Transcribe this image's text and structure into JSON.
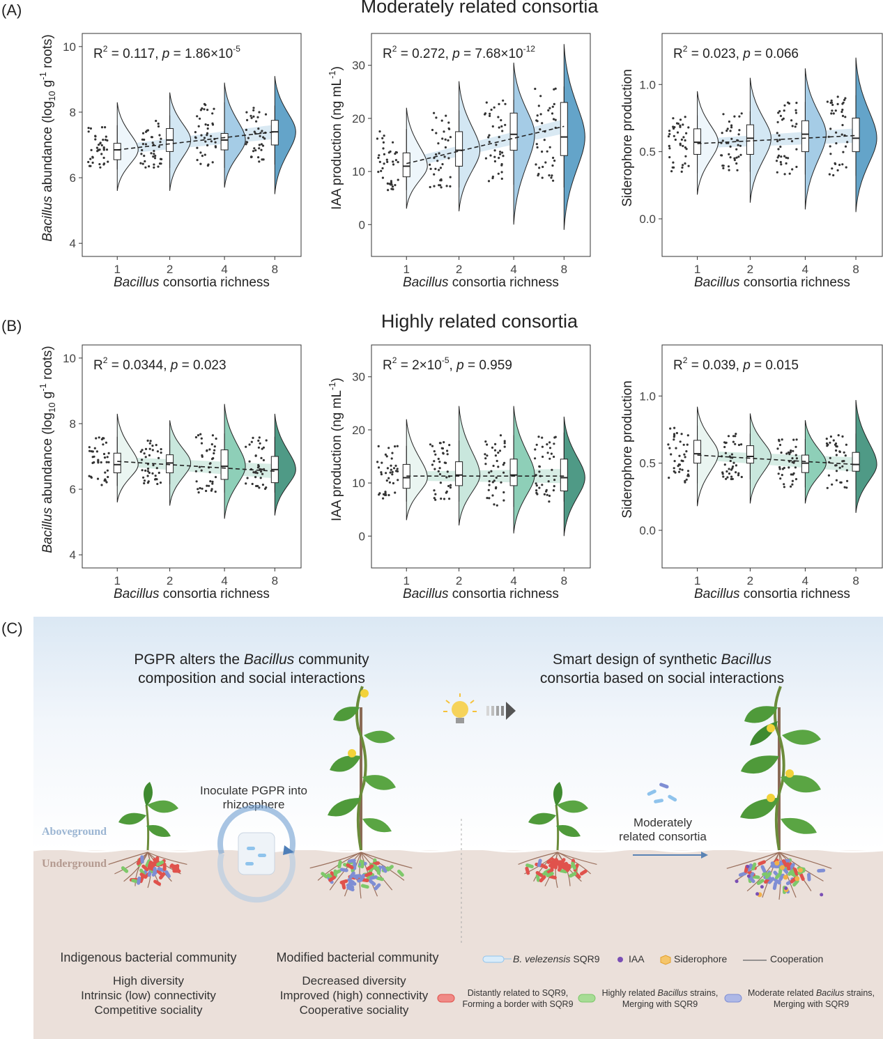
{
  "panels": {
    "A": {
      "letter": "(A)",
      "title": "Moderately related consortia"
    },
    "B": {
      "letter": "(B)",
      "title": "Highly related consortia"
    },
    "C": {
      "letter": "(C)"
    }
  },
  "axis_common": {
    "x_label_italic": "Bacillus",
    "x_label_rest": " consortia richness",
    "x_ticks": [
      "1",
      "2",
      "4",
      "8"
    ]
  },
  "chart_data": [
    {
      "id": "A-abundance",
      "type": "raincloud (half-violin + boxplot + jitter) with linear fit",
      "group": "Moderately related consortia",
      "ylabel_parts": [
        "Bacillus",
        " abundance (log",
        "10",
        " g",
        "-1",
        " roots)"
      ],
      "yticks": [
        4,
        6,
        8,
        10
      ],
      "ylim": [
        3.6,
        10.4
      ],
      "categories": [
        "1",
        "2",
        "4",
        "8"
      ],
      "stat_parts": [
        "R",
        "2",
        " = 0.117, ",
        "p",
        " = 1.86×10",
        "-5"
      ],
      "box": [
        {
          "q1": 6.55,
          "median": 6.85,
          "q3": 7.05,
          "wlo": 6.25,
          "whi": 7.6
        },
        {
          "q1": 6.8,
          "median": 7.15,
          "q3": 7.5,
          "wlo": 6.3,
          "whi": 7.9
        },
        {
          "q1": 6.85,
          "median": 7.15,
          "q3": 7.35,
          "wlo": 6.3,
          "whi": 8.3
        },
        {
          "q1": 7.0,
          "median": 7.4,
          "q3": 7.75,
          "wlo": 6.4,
          "whi": 8.2
        }
      ],
      "violin": [
        [
          5.6,
          8.3
        ],
        [
          5.6,
          8.6
        ],
        [
          5.7,
          8.9
        ],
        [
          5.5,
          9.1
        ]
      ],
      "fit": [
        6.85,
        7.4
      ],
      "fill_colors": [
        "#eef6fb",
        "#d3e7f3",
        "#a5cce6",
        "#64a4c9"
      ]
    },
    {
      "id": "A-iaa",
      "type": "raincloud (half-violin + boxplot + jitter) with linear fit",
      "group": "Moderately related consortia",
      "ylabel_parts": [
        "IAA production (ng mL",
        "-1",
        ")"
      ],
      "yticks": [
        0,
        10,
        20,
        30
      ],
      "ylim": [
        -6,
        36
      ],
      "categories": [
        "1",
        "2",
        "4",
        "8"
      ],
      "stat_parts": [
        "R",
        "2",
        " = 0.272, ",
        "p",
        " = 7.68×10",
        "-12"
      ],
      "box": [
        {
          "q1": 9.0,
          "median": 11.0,
          "q3": 13.5,
          "wlo": 6.5,
          "whi": 18.0
        },
        {
          "q1": 11.0,
          "median": 14.0,
          "q3": 17.5,
          "wlo": 7.0,
          "whi": 21.5
        },
        {
          "q1": 14.0,
          "median": 17.0,
          "q3": 21.0,
          "wlo": 7.5,
          "whi": 23.5
        },
        {
          "q1": 13.0,
          "median": 16.5,
          "q3": 23.0,
          "wlo": 7.0,
          "whi": 26.0
        }
      ],
      "violin": [
        [
          3.0,
          22.0
        ],
        [
          2.5,
          27.0
        ],
        [
          0.0,
          30.5
        ],
        [
          -1.0,
          34.0
        ]
      ],
      "fit": [
        11.5,
        18.5
      ],
      "fill_colors": [
        "#eef6fb",
        "#d3e7f3",
        "#a5cce6",
        "#64a4c9"
      ]
    },
    {
      "id": "A-siderophore",
      "type": "raincloud (half-violin + boxplot + jitter) with linear fit",
      "group": "Moderately related consortia",
      "ylabel_parts": [
        "Siderophore production"
      ],
      "yticks": [
        0.0,
        0.5,
        1.0
      ],
      "ytick_labels": [
        "0.0",
        "0.5",
        "1.0"
      ],
      "ylim": [
        -0.28,
        1.38
      ],
      "categories": [
        "1",
        "2",
        "4",
        "8"
      ],
      "stat_parts": [
        "R",
        "2",
        " = 0.023, ",
        "p",
        " = 0.066"
      ],
      "box": [
        {
          "q1": 0.48,
          "median": 0.57,
          "q3": 0.67,
          "wlo": 0.34,
          "whi": 0.77
        },
        {
          "q1": 0.48,
          "median": 0.6,
          "q3": 0.7,
          "wlo": 0.35,
          "whi": 0.8
        },
        {
          "q1": 0.5,
          "median": 0.63,
          "q3": 0.73,
          "wlo": 0.33,
          "whi": 0.87
        },
        {
          "q1": 0.5,
          "median": 0.6,
          "q3": 0.75,
          "wlo": 0.32,
          "whi": 0.92
        }
      ],
      "violin": [
        [
          0.18,
          0.95
        ],
        [
          0.12,
          1.05
        ],
        [
          0.07,
          1.12
        ],
        [
          0.05,
          1.2
        ]
      ],
      "fit": [
        0.56,
        0.62
      ],
      "fill_colors": [
        "#eef6fb",
        "#d3e7f3",
        "#a5cce6",
        "#64a4c9"
      ]
    },
    {
      "id": "B-abundance",
      "type": "raincloud (half-violin + boxplot + jitter) with linear fit",
      "group": "Highly related consortia",
      "ylabel_parts": [
        "Bacillus",
        " abundance (log",
        "10",
        " g",
        "-1",
        " roots)"
      ],
      "yticks": [
        4,
        6,
        8,
        10
      ],
      "ylim": [
        3.6,
        10.4
      ],
      "categories": [
        "1",
        "2",
        "4",
        "8"
      ],
      "stat_parts": [
        "R",
        "2",
        " = 0.0344, ",
        "p",
        " = 0.023"
      ],
      "box": [
        {
          "q1": 6.5,
          "median": 6.75,
          "q3": 7.1,
          "wlo": 6.1,
          "whi": 7.6
        },
        {
          "q1": 6.5,
          "median": 6.8,
          "q3": 7.05,
          "wlo": 6.15,
          "whi": 7.5
        },
        {
          "q1": 6.3,
          "median": 6.7,
          "q3": 7.2,
          "wlo": 5.9,
          "whi": 7.7
        },
        {
          "q1": 6.2,
          "median": 6.6,
          "q3": 7.0,
          "wlo": 5.9,
          "whi": 7.6
        }
      ],
      "violin": [
        [
          5.6,
          8.3
        ],
        [
          5.5,
          8.1
        ],
        [
          5.1,
          8.6
        ],
        [
          5.2,
          8.3
        ]
      ],
      "fit": [
        6.85,
        6.55
      ],
      "fill_colors": [
        "#eaf5f1",
        "#c9e7dd",
        "#8ecfb8",
        "#4f9a86"
      ]
    },
    {
      "id": "B-iaa",
      "type": "raincloud (half-violin + boxplot + jitter) with linear fit",
      "group": "Highly related consortia",
      "ylabel_parts": [
        "IAA production (ng mL",
        "-1",
        ")"
      ],
      "yticks": [
        0,
        10,
        20,
        30
      ],
      "ylim": [
        -6,
        36
      ],
      "categories": [
        "1",
        "2",
        "4",
        "8"
      ],
      "stat_parts": [
        "R",
        "2",
        " = 2×10",
        "-5",
        ", ",
        "p",
        " = 0.959"
      ],
      "box": [
        {
          "q1": 9.0,
          "median": 11.0,
          "q3": 13.5,
          "wlo": 6.5,
          "whi": 17.0
        },
        {
          "q1": 9.5,
          "median": 11.5,
          "q3": 14.0,
          "wlo": 6.5,
          "whi": 18.0
        },
        {
          "q1": 9.5,
          "median": 11.5,
          "q3": 14.5,
          "wlo": 5.5,
          "whi": 19.0
        },
        {
          "q1": 8.5,
          "median": 11.0,
          "q3": 14.5,
          "wlo": 6.5,
          "whi": 19.5
        }
      ],
      "violin": [
        [
          3.0,
          22.0
        ],
        [
          2.0,
          24.5
        ],
        [
          0.5,
          24.5
        ],
        [
          0.0,
          22.5
        ]
      ],
      "fit": [
        11.3,
        11.3
      ],
      "fill_colors": [
        "#eaf5f1",
        "#c9e7dd",
        "#8ecfb8",
        "#4f9a86"
      ]
    },
    {
      "id": "B-siderophore",
      "type": "raincloud (half-violin + boxplot + jitter) with linear fit",
      "group": "Highly related consortia",
      "ylabel_parts": [
        "Siderophore production"
      ],
      "yticks": [
        0.0,
        0.5,
        1.0
      ],
      "ytick_labels": [
        "0.0",
        "0.5",
        "1.0"
      ],
      "ylim": [
        -0.28,
        1.38
      ],
      "categories": [
        "1",
        "2",
        "4",
        "8"
      ],
      "stat_parts": [
        "R",
        "2",
        " = 0.039, ",
        "p",
        " = 0.015"
      ],
      "box": [
        {
          "q1": 0.5,
          "median": 0.57,
          "q3": 0.67,
          "wlo": 0.35,
          "whi": 0.78
        },
        {
          "q1": 0.5,
          "median": 0.55,
          "q3": 0.63,
          "wlo": 0.38,
          "whi": 0.72
        },
        {
          "q1": 0.43,
          "median": 0.5,
          "q3": 0.56,
          "wlo": 0.32,
          "whi": 0.68
        },
        {
          "q1": 0.44,
          "median": 0.49,
          "q3": 0.58,
          "wlo": 0.3,
          "whi": 0.72
        }
      ],
      "violin": [
        [
          0.18,
          0.92
        ],
        [
          0.2,
          0.87
        ],
        [
          0.2,
          0.82
        ],
        [
          0.13,
          0.97
        ]
      ],
      "fit": [
        0.56,
        0.49
      ],
      "fill_colors": [
        "#eaf5f1",
        "#c9e7dd",
        "#8ecfb8",
        "#4f9a86"
      ]
    }
  ],
  "illustration": {
    "left_heading_parts": [
      "PGPR alters the ",
      "Bacillus",
      " community",
      "composition and social interactions"
    ],
    "right_heading_parts": [
      "Smart design of synthetic ",
      "Bacillus",
      "consortia based on social interactions"
    ],
    "aboveground": "Aboveground",
    "underground": "Underground",
    "inoculate": [
      "Inoculate PGPR into",
      "rhizosphere"
    ],
    "moderately": [
      "Moderately",
      "related consortia"
    ],
    "indigenous": {
      "title": "Indigenous bacterial community",
      "lines": [
        "High diversity",
        "Intrinsic (low) connectivity",
        "Competitive sociality"
      ]
    },
    "modified": {
      "title": "Modified bacterial community",
      "lines": [
        "Decreased diversity",
        "Improved (high) connectivity",
        "Cooperative sociality"
      ]
    },
    "legend": {
      "sqr9_italic": "B. velezensis",
      "sqr9_rest": " SQR9",
      "iaa": "IAA",
      "siderophore": "Siderophore",
      "cooperation": "Cooperation",
      "red": [
        "Distantly related to SQR9,",
        "Forming a border with SQR9"
      ],
      "green": [
        "Highly related ",
        "Bacillus",
        " strains,",
        "Merging with SQR9"
      ],
      "blue": [
        "Moderate related ",
        "Bacilus",
        " strains,",
        "Merging with SQR9"
      ]
    },
    "colors": {
      "sqr9": "#8fc3ec",
      "red_strain": "#e0524c",
      "green_strain": "#7ec86a",
      "blue_strain": "#7f8ed4",
      "iaa_dot": "#7a4fb5",
      "siderophore": "#f2b04a",
      "leaf": "#4f9a3a",
      "stem": "#7c5a3d"
    }
  }
}
